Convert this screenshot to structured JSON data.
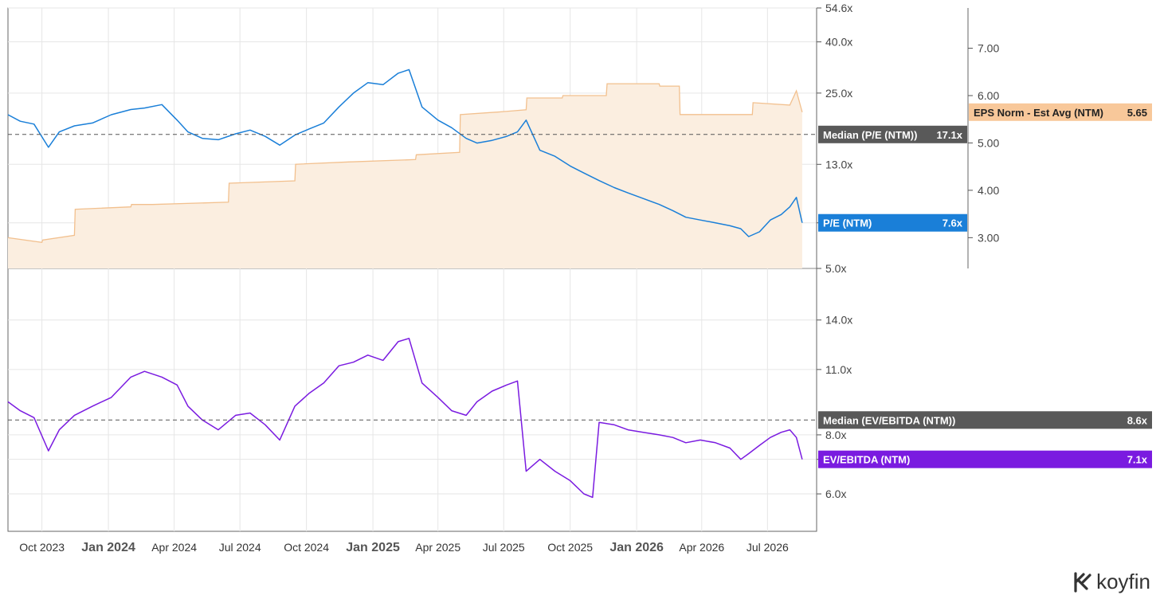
{
  "colors": {
    "pe": "#1a7fd8",
    "eps_fill": "#fbeee0",
    "eps_line": "#f2c08e",
    "eps_tag": "#f8c89a",
    "evebitda": "#7a1be0",
    "median_tag": "#595959",
    "grid": "#e6e6e6",
    "axis": "#555555"
  },
  "brand": {
    "name": "koyfin",
    "icon": "koyfin-logo-icon"
  },
  "x_axis": {
    "ticks": [
      {
        "label": "Oct 2023",
        "date": "2023-10-01",
        "bold": false
      },
      {
        "label": "Jan 2024",
        "date": "2024-01-01",
        "bold": true
      },
      {
        "label": "Apr 2024",
        "date": "2024-04-01",
        "bold": false
      },
      {
        "label": "Jul 2024",
        "date": "2024-07-01",
        "bold": false
      },
      {
        "label": "Oct 2024",
        "date": "2024-10-01",
        "bold": false
      },
      {
        "label": "Jan 2025",
        "date": "2025-01-01",
        "bold": true
      },
      {
        "label": "Apr 2025",
        "date": "2025-04-01",
        "bold": false
      },
      {
        "label": "Jul 2025",
        "date": "2025-07-01",
        "bold": false
      },
      {
        "label": "Oct 2025",
        "date": "2025-10-01",
        "bold": false
      },
      {
        "label": "Jan 2026",
        "date": "2026-01-01",
        "bold": true
      },
      {
        "label": "Apr 2026",
        "date": "2026-04-01",
        "bold": false
      },
      {
        "label": "Jul 2026",
        "date": "2026-07-01",
        "bold": false
      }
    ],
    "range": [
      "2023-08-15",
      "2026-09-07"
    ]
  },
  "chart_data": [
    {
      "type": "line",
      "panel": "top",
      "scale": "log",
      "y_ticks": [
        "54.6x",
        "40.0x",
        "25.0x",
        "13.0x",
        "7.6x",
        "5.0x"
      ],
      "y_tick_values": [
        54.6,
        40.0,
        25.0,
        13.0,
        7.6,
        5.0
      ],
      "ylim": [
        5.0,
        54.6
      ],
      "grid": true,
      "series": [
        {
          "name": "P/E (NTM)",
          "latest_label": "7.6x",
          "x": [
            "2023-08-15",
            "2023-09-01",
            "2023-09-20",
            "2023-10-10",
            "2023-10-25",
            "2023-11-15",
            "2023-12-10",
            "2024-01-05",
            "2024-02-01",
            "2024-02-20",
            "2024-03-15",
            "2024-04-05",
            "2024-04-20",
            "2024-05-10",
            "2024-06-01",
            "2024-06-25",
            "2024-07-15",
            "2024-08-05",
            "2024-08-25",
            "2024-09-15",
            "2024-10-05",
            "2024-10-25",
            "2024-11-15",
            "2024-12-05",
            "2024-12-25",
            "2025-01-15",
            "2025-02-05",
            "2025-02-20",
            "2025-03-10",
            "2025-04-01",
            "2025-04-20",
            "2025-05-10",
            "2025-05-25",
            "2025-06-15",
            "2025-07-05",
            "2025-07-20",
            "2025-08-01",
            "2025-08-20",
            "2025-09-10",
            "2025-10-01",
            "2025-10-20",
            "2025-11-10",
            "2025-12-01",
            "2025-12-20",
            "2026-01-10",
            "2026-02-01",
            "2026-02-20",
            "2026-03-10",
            "2026-03-30",
            "2026-04-20",
            "2026-05-10",
            "2026-05-25",
            "2026-06-05",
            "2026-06-20",
            "2026-07-05",
            "2026-07-20",
            "2026-08-01",
            "2026-08-10",
            "2026-08-18"
          ],
          "y": [
            20.5,
            19.3,
            18.8,
            15.2,
            17.5,
            18.5,
            19.0,
            20.5,
            21.5,
            21.8,
            22.5,
            19.5,
            17.5,
            16.5,
            16.3,
            17.2,
            17.8,
            16.8,
            15.5,
            17.0,
            18.0,
            19.0,
            22.0,
            25.0,
            27.5,
            27.0,
            30.0,
            31.0,
            22.0,
            19.5,
            18.2,
            16.5,
            15.8,
            16.2,
            16.8,
            17.5,
            19.5,
            14.8,
            14.0,
            12.8,
            12.0,
            11.2,
            10.5,
            10.0,
            9.5,
            9.0,
            8.5,
            8.0,
            7.8,
            7.6,
            7.4,
            7.2,
            6.7,
            7.0,
            7.8,
            8.2,
            8.8,
            9.6,
            7.6
          ]
        },
        {
          "name": "EPS Norm - Est Avg (NTM)",
          "latest_label": "5.65",
          "axis": "right",
          "scale": "linear",
          "y_ticks": [
            "7.00",
            "6.00",
            "5.00",
            "4.00",
            "3.00"
          ],
          "ylim": [
            2.35,
            7.85
          ],
          "x": [
            "2023-08-15",
            "2023-10-01",
            "2023-10-02",
            "2023-11-15",
            "2023-11-16",
            "2024-02-01",
            "2024-02-02",
            "2024-03-01",
            "2024-03-02",
            "2024-06-15",
            "2024-06-16",
            "2024-09-15",
            "2024-09-16",
            "2024-12-01",
            "2024-12-02",
            "2025-03-01",
            "2025-03-02",
            "2025-05-01",
            "2025-05-02",
            "2025-06-20",
            "2025-06-21",
            "2025-08-01",
            "2025-08-02",
            "2025-09-20",
            "2025-09-21",
            "2025-11-20",
            "2025-11-21",
            "2026-02-01",
            "2026-02-02",
            "2026-03-01",
            "2026-03-02",
            "2026-06-10",
            "2026-06-11",
            "2026-08-01",
            "2026-08-10",
            "2026-08-18"
          ],
          "y": [
            3.0,
            2.9,
            2.95,
            3.05,
            3.6,
            3.65,
            3.7,
            3.7,
            3.7,
            3.75,
            4.15,
            4.2,
            4.55,
            4.6,
            4.6,
            4.65,
            4.75,
            4.8,
            5.6,
            5.65,
            5.65,
            5.7,
            5.95,
            5.95,
            6.0,
            6.0,
            6.25,
            6.25,
            6.2,
            6.2,
            5.6,
            5.6,
            5.85,
            5.8,
            6.1,
            5.65
          ]
        }
      ],
      "reference_lines": [
        {
          "name": "Median (P/E (NTM))",
          "value": 17.1,
          "label": "17.1x"
        }
      ]
    },
    {
      "type": "line",
      "panel": "bottom",
      "scale": "log",
      "y_ticks": [
        "14.0x",
        "11.0x",
        "8.0x",
        "7.1x",
        "6.0x"
      ],
      "y_tick_values": [
        14.0,
        11.0,
        8.0,
        7.1,
        6.0
      ],
      "ylim": [
        5.0,
        18.0
      ],
      "grid": true,
      "series": [
        {
          "name": "EV/EBITDA (NTM)",
          "latest_label": "7.1x",
          "x": [
            "2023-08-15",
            "2023-09-01",
            "2023-09-20",
            "2023-10-10",
            "2023-10-25",
            "2023-11-15",
            "2023-12-10",
            "2024-01-05",
            "2024-02-01",
            "2024-02-20",
            "2024-03-15",
            "2024-04-05",
            "2024-04-20",
            "2024-05-10",
            "2024-06-01",
            "2024-06-25",
            "2024-07-15",
            "2024-08-05",
            "2024-08-25",
            "2024-09-15",
            "2024-10-05",
            "2024-10-25",
            "2024-11-15",
            "2024-12-05",
            "2024-12-25",
            "2025-01-15",
            "2025-02-05",
            "2025-02-20",
            "2025-03-10",
            "2025-04-01",
            "2025-04-20",
            "2025-05-10",
            "2025-05-25",
            "2025-06-15",
            "2025-07-05",
            "2025-07-20",
            "2025-08-01",
            "2025-08-20",
            "2025-09-10",
            "2025-10-01",
            "2025-10-20",
            "2025-11-01",
            "2025-11-10",
            "2025-12-01",
            "2025-12-20",
            "2026-01-10",
            "2026-02-01",
            "2026-02-20",
            "2026-03-10",
            "2026-03-30",
            "2026-04-20",
            "2026-05-10",
            "2026-05-25",
            "2026-06-05",
            "2026-06-20",
            "2026-07-05",
            "2026-07-20",
            "2026-08-01",
            "2026-08-10",
            "2026-08-18"
          ],
          "y": [
            9.4,
            9.0,
            8.7,
            7.4,
            8.2,
            8.8,
            9.2,
            9.6,
            10.6,
            10.9,
            10.6,
            10.2,
            9.2,
            8.6,
            8.2,
            8.8,
            8.9,
            8.4,
            7.8,
            9.2,
            9.8,
            10.3,
            11.2,
            11.4,
            11.8,
            11.5,
            12.6,
            12.8,
            10.3,
            9.6,
            9.0,
            8.8,
            9.4,
            9.9,
            10.2,
            10.4,
            6.7,
            7.1,
            6.7,
            6.4,
            6.0,
            5.9,
            8.5,
            8.4,
            8.2,
            8.1,
            8.0,
            7.9,
            7.7,
            7.8,
            7.7,
            7.5,
            7.1,
            7.3,
            7.6,
            7.9,
            8.1,
            8.2,
            7.9,
            7.1
          ]
        }
      ],
      "reference_lines": [
        {
          "name": "Median (EV/EBITDA (NTM))",
          "value": 8.6,
          "label": "8.6x"
        }
      ]
    }
  ]
}
